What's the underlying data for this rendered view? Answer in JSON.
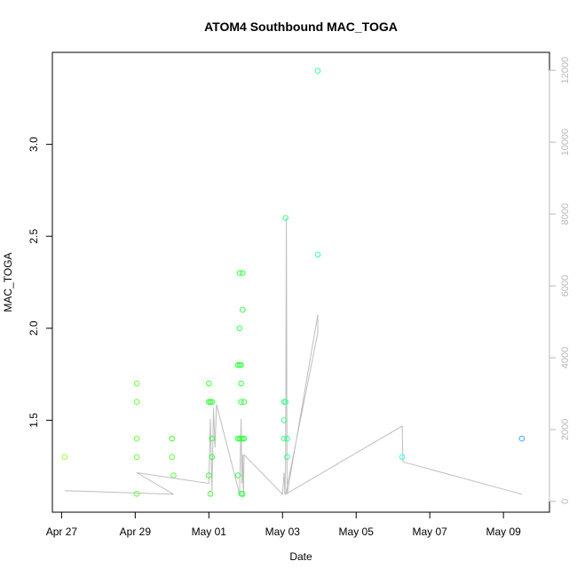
{
  "chart_data": {
    "type": "scatter",
    "title": "ATOM4 Southbound MAC_TOGA",
    "xlabel": "Date",
    "ylabel": "MAC_TOGA",
    "x_axis": {
      "type": "date",
      "range": [
        "2016-04-26T18:00",
        "2016-05-10T06:00"
      ],
      "ticks": [
        {
          "value": "2016-04-27",
          "label": "Apr 27"
        },
        {
          "value": "2016-04-29",
          "label": "Apr 29"
        },
        {
          "value": "2016-05-01",
          "label": "May 01"
        },
        {
          "value": "2016-05-03",
          "label": "May 03"
        },
        {
          "value": "2016-05-05",
          "label": "May 05"
        },
        {
          "value": "2016-05-07",
          "label": "May 07"
        },
        {
          "value": "2016-05-09",
          "label": "May 09"
        }
      ]
    },
    "y_axis": {
      "range": [
        1.0,
        3.5
      ],
      "ticks": [
        {
          "value": 1.5,
          "label": "1.5"
        },
        {
          "value": 2.0,
          "label": "2.0"
        },
        {
          "value": 2.5,
          "label": "2.5"
        },
        {
          "value": 3.0,
          "label": "3.0"
        }
      ]
    },
    "y2_axis": {
      "range": [
        -300,
        12500
      ],
      "ticks": [
        {
          "value": 0,
          "label": "0"
        },
        {
          "value": 2000,
          "label": "2000"
        },
        {
          "value": 4000,
          "label": "4000"
        },
        {
          "value": 6000,
          "label": "6000"
        },
        {
          "value": 8000,
          "label": "8000"
        },
        {
          "value": 10000,
          "label": "10000"
        },
        {
          "value": 12000,
          "label": "12000"
        }
      ],
      "color": "#b8b8b8"
    },
    "grid": false,
    "points": [
      {
        "x": "2016-04-27 02:00",
        "y": 1.3,
        "color": "#9eff3c"
      },
      {
        "x": "2016-04-29 01:00",
        "y": 1.7,
        "color": "#6aff3c"
      },
      {
        "x": "2016-04-29 01:00",
        "y": 1.6,
        "color": "#6aff3c"
      },
      {
        "x": "2016-04-29 01:00",
        "y": 1.4,
        "color": "#6aff3c"
      },
      {
        "x": "2016-04-29 01:00",
        "y": 1.3,
        "color": "#6aff3c"
      },
      {
        "x": "2016-04-29 01:00",
        "y": 1.1,
        "color": "#6aff3c"
      },
      {
        "x": "2016-04-30 00:00",
        "y": 1.4,
        "color": "#5cff3c"
      },
      {
        "x": "2016-04-30 00:00",
        "y": 1.4,
        "color": "#5cff3c"
      },
      {
        "x": "2016-04-30 00:00",
        "y": 1.3,
        "color": "#5cff3c"
      },
      {
        "x": "2016-04-30 01:00",
        "y": 1.2,
        "color": "#5cff3c"
      },
      {
        "x": "2016-05-01 00:00",
        "y": 1.7,
        "color": "#3cff3c"
      },
      {
        "x": "2016-05-01 00:00",
        "y": 1.6,
        "color": "#3cff3c"
      },
      {
        "x": "2016-05-01 01:00",
        "y": 1.6,
        "color": "#3cff3c"
      },
      {
        "x": "2016-05-01 02:00",
        "y": 1.6,
        "color": "#3cff3c"
      },
      {
        "x": "2016-05-01 02:00",
        "y": 1.4,
        "color": "#3cff3c"
      },
      {
        "x": "2016-05-01 02:00",
        "y": 1.3,
        "color": "#3cff3c"
      },
      {
        "x": "2016-05-01 00:00",
        "y": 1.2,
        "color": "#3cff3c"
      },
      {
        "x": "2016-05-01 01:00",
        "y": 1.1,
        "color": "#3cff3c"
      },
      {
        "x": "2016-05-01 20:00",
        "y": 2.3,
        "color": "#3cff4a"
      },
      {
        "x": "2016-05-01 22:00",
        "y": 2.3,
        "color": "#3cff4a"
      },
      {
        "x": "2016-05-01 22:00",
        "y": 2.1,
        "color": "#3cff4a"
      },
      {
        "x": "2016-05-01 20:00",
        "y": 2.0,
        "color": "#3cff4a"
      },
      {
        "x": "2016-05-01 19:00",
        "y": 1.8,
        "color": "#3cff4a"
      },
      {
        "x": "2016-05-01 20:00",
        "y": 1.8,
        "color": "#3cff4a"
      },
      {
        "x": "2016-05-01 21:00",
        "y": 1.8,
        "color": "#3cff4a"
      },
      {
        "x": "2016-05-01 21:00",
        "y": 1.7,
        "color": "#3cff4a"
      },
      {
        "x": "2016-05-01 21:00",
        "y": 1.6,
        "color": "#3cff4a"
      },
      {
        "x": "2016-05-01 23:00",
        "y": 1.6,
        "color": "#3cff4a"
      },
      {
        "x": "2016-05-01 19:00",
        "y": 1.4,
        "color": "#3cff4a"
      },
      {
        "x": "2016-05-01 20:00",
        "y": 1.4,
        "color": "#3cff4a"
      },
      {
        "x": "2016-05-01 21:00",
        "y": 1.4,
        "color": "#3cff4a"
      },
      {
        "x": "2016-05-01 22:00",
        "y": 1.4,
        "color": "#3cff4a"
      },
      {
        "x": "2016-05-01 23:00",
        "y": 1.4,
        "color": "#3cff4a"
      },
      {
        "x": "2016-05-01 19:00",
        "y": 1.2,
        "color": "#3cff4a"
      },
      {
        "x": "2016-05-01 21:00",
        "y": 1.1,
        "color": "#3cff4a"
      },
      {
        "x": "2016-05-01 22:00",
        "y": 1.1,
        "color": "#3cff4a"
      },
      {
        "x": "2016-05-03 02:00",
        "y": 2.6,
        "color": "#3cff8e"
      },
      {
        "x": "2016-05-03 01:00",
        "y": 1.6,
        "color": "#3cff8e"
      },
      {
        "x": "2016-05-03 02:00",
        "y": 1.6,
        "color": "#3cff8e"
      },
      {
        "x": "2016-05-03 01:00",
        "y": 1.5,
        "color": "#3cff8e"
      },
      {
        "x": "2016-05-03 01:00",
        "y": 1.4,
        "color": "#3cff8e"
      },
      {
        "x": "2016-05-03 03:00",
        "y": 1.4,
        "color": "#3cff8e"
      },
      {
        "x": "2016-05-03 03:00",
        "y": 1.3,
        "color": "#3cff8e"
      },
      {
        "x": "2016-05-03 23:00",
        "y": 3.4,
        "color": "#3cff9e"
      },
      {
        "x": "2016-05-03 23:00",
        "y": 2.4,
        "color": "#3cff9e"
      },
      {
        "x": "2016-05-06 06:00",
        "y": 1.3,
        "color": "#3cffd8"
      },
      {
        "x": "2016-05-09 12:00",
        "y": 1.4,
        "color": "#3caaff"
      }
    ],
    "line_series": {
      "axis": "right",
      "color": "#bebebe",
      "points": [
        {
          "x": "2016-04-27 02:00",
          "y": 300
        },
        {
          "x": "2016-04-30 01:00",
          "y": 200
        },
        {
          "x": "2016-04-29 01:00",
          "y": 800
        },
        {
          "x": "2016-05-01 00:00",
          "y": 500
        },
        {
          "x": "2016-05-01 01:00",
          "y": 2300
        },
        {
          "x": "2016-05-01 02:00",
          "y": 300
        },
        {
          "x": "2016-05-01 03:00",
          "y": 2600
        },
        {
          "x": "2016-05-01 04:00",
          "y": 1500
        },
        {
          "x": "2016-05-01 05:00",
          "y": 2700
        },
        {
          "x": "2016-05-01 20:00",
          "y": 200
        },
        {
          "x": "2016-05-01 21:00",
          "y": 2300
        },
        {
          "x": "2016-05-01 21:30",
          "y": 500
        },
        {
          "x": "2016-05-01 22:00",
          "y": 1300
        },
        {
          "x": "2016-05-01 22:30",
          "y": 100
        },
        {
          "x": "2016-05-01 23:00",
          "y": 1300
        },
        {
          "x": "2016-05-03 00:00",
          "y": 200
        },
        {
          "x": "2016-05-03 01:00",
          "y": 800
        },
        {
          "x": "2016-05-03 01:30",
          "y": 200
        },
        {
          "x": "2016-05-03 02:00",
          "y": 1000
        },
        {
          "x": "2016-05-03 02:30",
          "y": 7900
        },
        {
          "x": "2016-05-03 03:00",
          "y": 200
        },
        {
          "x": "2016-05-03 23:00",
          "y": 5200
        },
        {
          "x": "2016-05-03 23:00",
          "y": 4700
        },
        {
          "x": "2016-05-03 02:00",
          "y": 200
        },
        {
          "x": "2016-05-06 06:00",
          "y": 2100
        },
        {
          "x": "2016-05-06 06:30",
          "y": 1100
        },
        {
          "x": "2016-05-09 12:00",
          "y": 200
        }
      ]
    }
  }
}
